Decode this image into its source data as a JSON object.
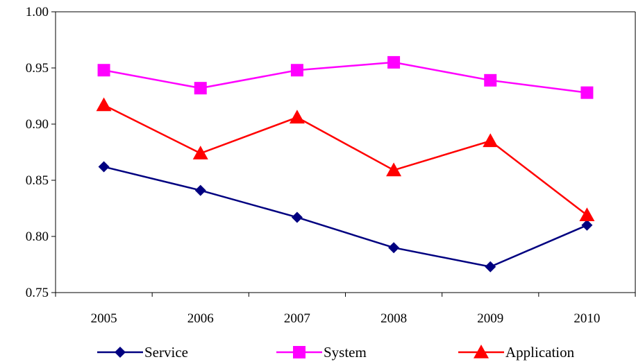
{
  "chart_data": {
    "type": "line",
    "categories": [
      "2005",
      "2006",
      "2007",
      "2008",
      "2009",
      "2010"
    ],
    "ylim": [
      0.75,
      1.0
    ],
    "yticks": [
      "0.75",
      "0.80",
      "0.85",
      "0.90",
      "0.95",
      "1.00"
    ],
    "grid": false,
    "legend": "bottom",
    "series": [
      {
        "name": "Service",
        "color": "#000080",
        "marker": "diamond",
        "values": [
          0.862,
          0.841,
          0.817,
          0.79,
          0.773,
          0.81
        ]
      },
      {
        "name": "System",
        "color": "#FF00FF",
        "marker": "square",
        "values": [
          0.948,
          0.932,
          0.948,
          0.955,
          0.939,
          0.928
        ]
      },
      {
        "name": "Application",
        "color": "#FF0000",
        "marker": "triangle",
        "values": [
          0.917,
          0.874,
          0.906,
          0.859,
          0.885,
          0.819
        ]
      }
    ]
  }
}
